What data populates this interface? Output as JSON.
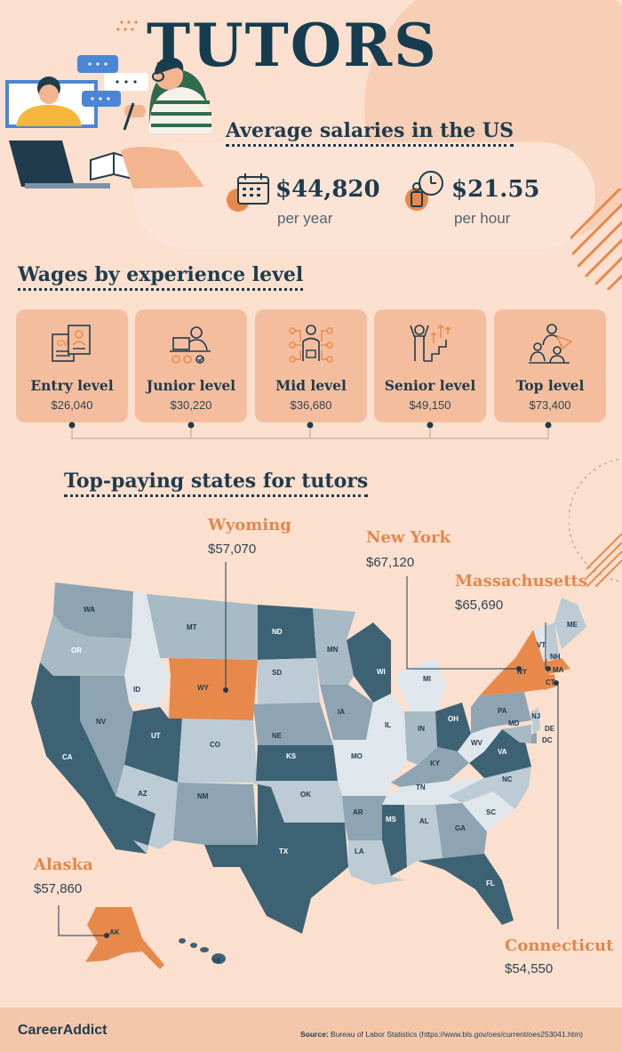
{
  "title": "TUTORS",
  "average": {
    "heading": "Average salaries in the US",
    "yearly_value": "$44,820",
    "yearly_unit": "per year",
    "hourly_value": "$21.55",
    "hourly_unit": "per hour"
  },
  "experience": {
    "heading": "Wages by experience level",
    "levels": [
      {
        "label": "Entry level",
        "wage": "$26,040",
        "icon": "cv-document-icon"
      },
      {
        "label": "Junior level",
        "wage": "$30,220",
        "icon": "worker-laptop-icon"
      },
      {
        "label": "Mid level",
        "wage": "$36,680",
        "icon": "professional-network-icon"
      },
      {
        "label": "Senior level",
        "wage": "$49,150",
        "icon": "climbing-stairs-icon"
      },
      {
        "label": "Top level",
        "wage": "$73,400",
        "icon": "leader-team-icon"
      }
    ]
  },
  "states": {
    "heading": "Top-paying states for tutors",
    "highlight_color": "#e8894c",
    "callouts": [
      {
        "name": "Wyoming",
        "value": "$57,070"
      },
      {
        "name": "New York",
        "value": "$67,120"
      },
      {
        "name": "Massachusetts",
        "value": "$65,690"
      },
      {
        "name": "Alaska",
        "value": "$57,860"
      },
      {
        "name": "Connecticut",
        "value": "$54,550"
      }
    ],
    "labels": [
      "WA",
      "OR",
      "CA",
      "ID",
      "NV",
      "MT",
      "WY",
      "UT",
      "AZ",
      "CO",
      "NM",
      "ND",
      "SD",
      "NE",
      "KS",
      "OK",
      "TX",
      "MN",
      "IA",
      "MO",
      "AR",
      "LA",
      "WI",
      "IL",
      "MI",
      "IN",
      "OH",
      "KY",
      "TN",
      "MS",
      "AL",
      "GA",
      "FL",
      "SC",
      "NC",
      "VA",
      "WV",
      "PA",
      "NY",
      "VT",
      "NH",
      "ME",
      "MA",
      "CT",
      "NJ",
      "DE",
      "MD",
      "DC",
      "AK",
      "HI"
    ]
  },
  "footer": {
    "logo": "CareerAddict",
    "source_label": "Source:",
    "source_text": "Bureau of Labor Statistics (https://www.bls.gov/oes/current/oes253041.htm)"
  }
}
